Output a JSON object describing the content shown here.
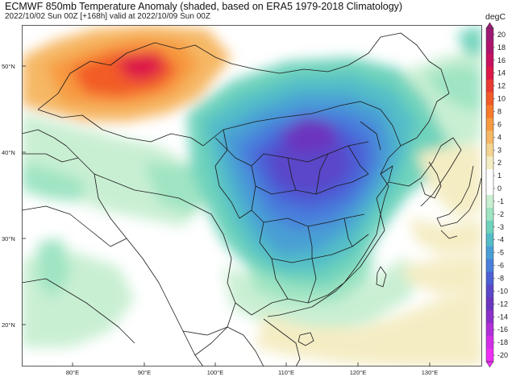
{
  "header": {
    "title": "ECMWF 850mb Temperature Anomaly (shaded, based on ERA5 1979-2018 Climatology)",
    "subtitle": "2022/10/02 Sun 00Z [+168h] valid at 2022/10/09 Sun 00Z"
  },
  "map": {
    "lat_labels": [
      "50°N",
      "40°N",
      "30°N",
      "20°N"
    ],
    "lon_labels": [
      "80°E",
      "90°E",
      "100°E",
      "110°E",
      "120°E",
      "130°E"
    ]
  },
  "colorbar": {
    "unit": "degC",
    "labels": [
      "20",
      "18",
      "16",
      "14",
      "12",
      "10",
      "8",
      "6",
      "4",
      "3",
      "2",
      "1",
      "0",
      "-1",
      "-2",
      "-3",
      "-4",
      "-5",
      "-6",
      "-8",
      "-10",
      "-12",
      "-14",
      "-16",
      "-18",
      "-20"
    ],
    "colors": [
      "#9c1a74",
      "#b0136b",
      "#c8115f",
      "#dd1848",
      "#ea3b32",
      "#f25b28",
      "#f77a2a",
      "#f79a40",
      "#f6b865",
      "#f3d591",
      "#f4edc4",
      "#ffffff",
      "#ffffff",
      "#c9efd3",
      "#9fe4c3",
      "#6ed3bb",
      "#53bdc7",
      "#4a9fd4",
      "#4a7fdb",
      "#4c5fd5",
      "#5a47c9",
      "#6c36be",
      "#8c2fcb",
      "#b12fd9",
      "#d22ee8",
      "#ee2ef5"
    ]
  }
}
